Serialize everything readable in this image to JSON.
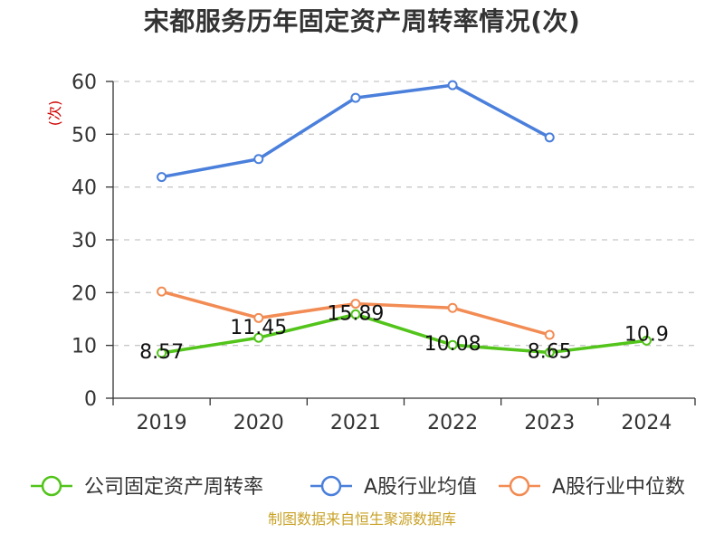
{
  "chart_data": {
    "type": "line",
    "title": "宋都服务历年固定资产周转率情况(次)",
    "xlabel": "",
    "ylabel": "(次)",
    "ylim": [
      0,
      60
    ],
    "yticks": [
      0,
      10,
      20,
      30,
      40,
      50,
      60
    ],
    "grid": true,
    "legend_position": "bottom",
    "categories": [
      "2019",
      "2020",
      "2021",
      "2022",
      "2023",
      "2024"
    ],
    "series": [
      {
        "name": "公司固定资产周转率",
        "color": "#52c41a",
        "values": [
          8.57,
          11.45,
          15.89,
          10.08,
          8.65,
          10.9
        ],
        "labels": [
          "8.57",
          "11.45",
          "15.89",
          "10.08",
          "8.65",
          "10.9"
        ]
      },
      {
        "name": "A股行业均值",
        "color": "#4a7fdb",
        "values": [
          41.9,
          45.3,
          56.9,
          59.3,
          49.4,
          null
        ],
        "labels": []
      },
      {
        "name": "A股行业中位数",
        "color": "#f28c54",
        "values": [
          20.2,
          15.2,
          17.9,
          17.1,
          12.0,
          null
        ],
        "labels": []
      }
    ]
  },
  "source": "制图数据来自恒生聚源数据库"
}
